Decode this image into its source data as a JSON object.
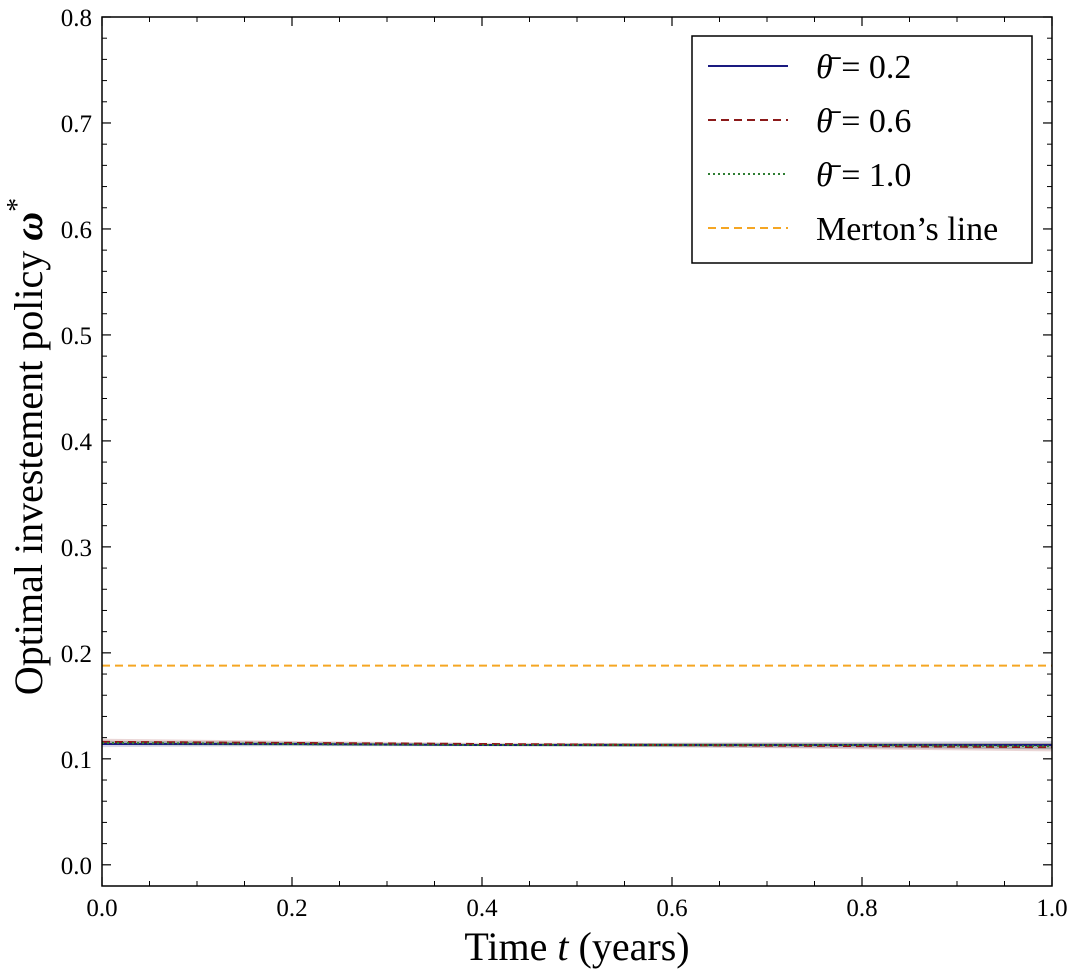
{
  "chart_data": {
    "type": "line",
    "title": "",
    "xlabel": {
      "prefix": "Time ",
      "var": "t",
      "suffix": " (years)"
    },
    "ylabel": {
      "text": "Optimal investement policy ",
      "var": "ω",
      "sup": "*"
    },
    "xlim": [
      0.0,
      1.0
    ],
    "ylim": [
      -0.02,
      0.8
    ],
    "xticks": [
      0.0,
      0.2,
      0.4,
      0.6,
      0.8,
      1.0
    ],
    "yticks": [
      0.0,
      0.1,
      0.2,
      0.3,
      0.4,
      0.5,
      0.6,
      0.7,
      0.8
    ],
    "xtick_labels": [
      "0.0",
      "0.2",
      "0.4",
      "0.6",
      "0.8",
      "1.0"
    ],
    "ytick_labels": [
      "0.0",
      "0.1",
      "0.2",
      "0.3",
      "0.4",
      "0.5",
      "0.6",
      "0.7",
      "0.8"
    ],
    "grid": false,
    "legend_position": "top-right",
    "series": [
      {
        "name": "θ̄ = 0.2",
        "color": "#1a1a80",
        "style": "solid",
        "x": [
          0.0,
          0.2,
          0.4,
          0.6,
          0.8,
          1.0
        ],
        "y": [
          0.114,
          0.114,
          0.113,
          0.113,
          0.113,
          0.113
        ],
        "band": [
          0.003,
          0.002,
          0.001,
          0.002,
          0.003,
          0.004
        ]
      },
      {
        "name": "θ̄ = 0.6",
        "color": "#8b1a1a",
        "style": "dashed",
        "x": [
          0.0,
          0.2,
          0.4,
          0.6,
          0.8,
          1.0
        ],
        "y": [
          0.116,
          0.115,
          0.114,
          0.113,
          0.112,
          0.111
        ],
        "band": [
          0.003,
          0.002,
          0.001,
          0.002,
          0.003,
          0.004
        ]
      },
      {
        "name": "θ̄ = 1.0",
        "color": "#2e7d32",
        "style": "dotted",
        "x": [
          0.0,
          0.2,
          0.4,
          0.6,
          0.8,
          1.0
        ],
        "y": [
          0.115,
          0.114,
          0.113,
          0.113,
          0.113,
          0.112
        ],
        "band": [
          0.002,
          0.002,
          0.001,
          0.002,
          0.002,
          0.003
        ]
      },
      {
        "name": "Merton’s line",
        "color": "#f5a623",
        "style": "dashed",
        "x": [
          0.0,
          1.0
        ],
        "y": [
          0.188,
          0.188
        ],
        "band": null
      }
    ],
    "legend": [
      {
        "kind": "theta",
        "value": "0.2"
      },
      {
        "kind": "theta",
        "value": "0.6"
      },
      {
        "kind": "theta",
        "value": "1.0"
      },
      {
        "kind": "text",
        "text": "Merton’s line"
      }
    ]
  }
}
